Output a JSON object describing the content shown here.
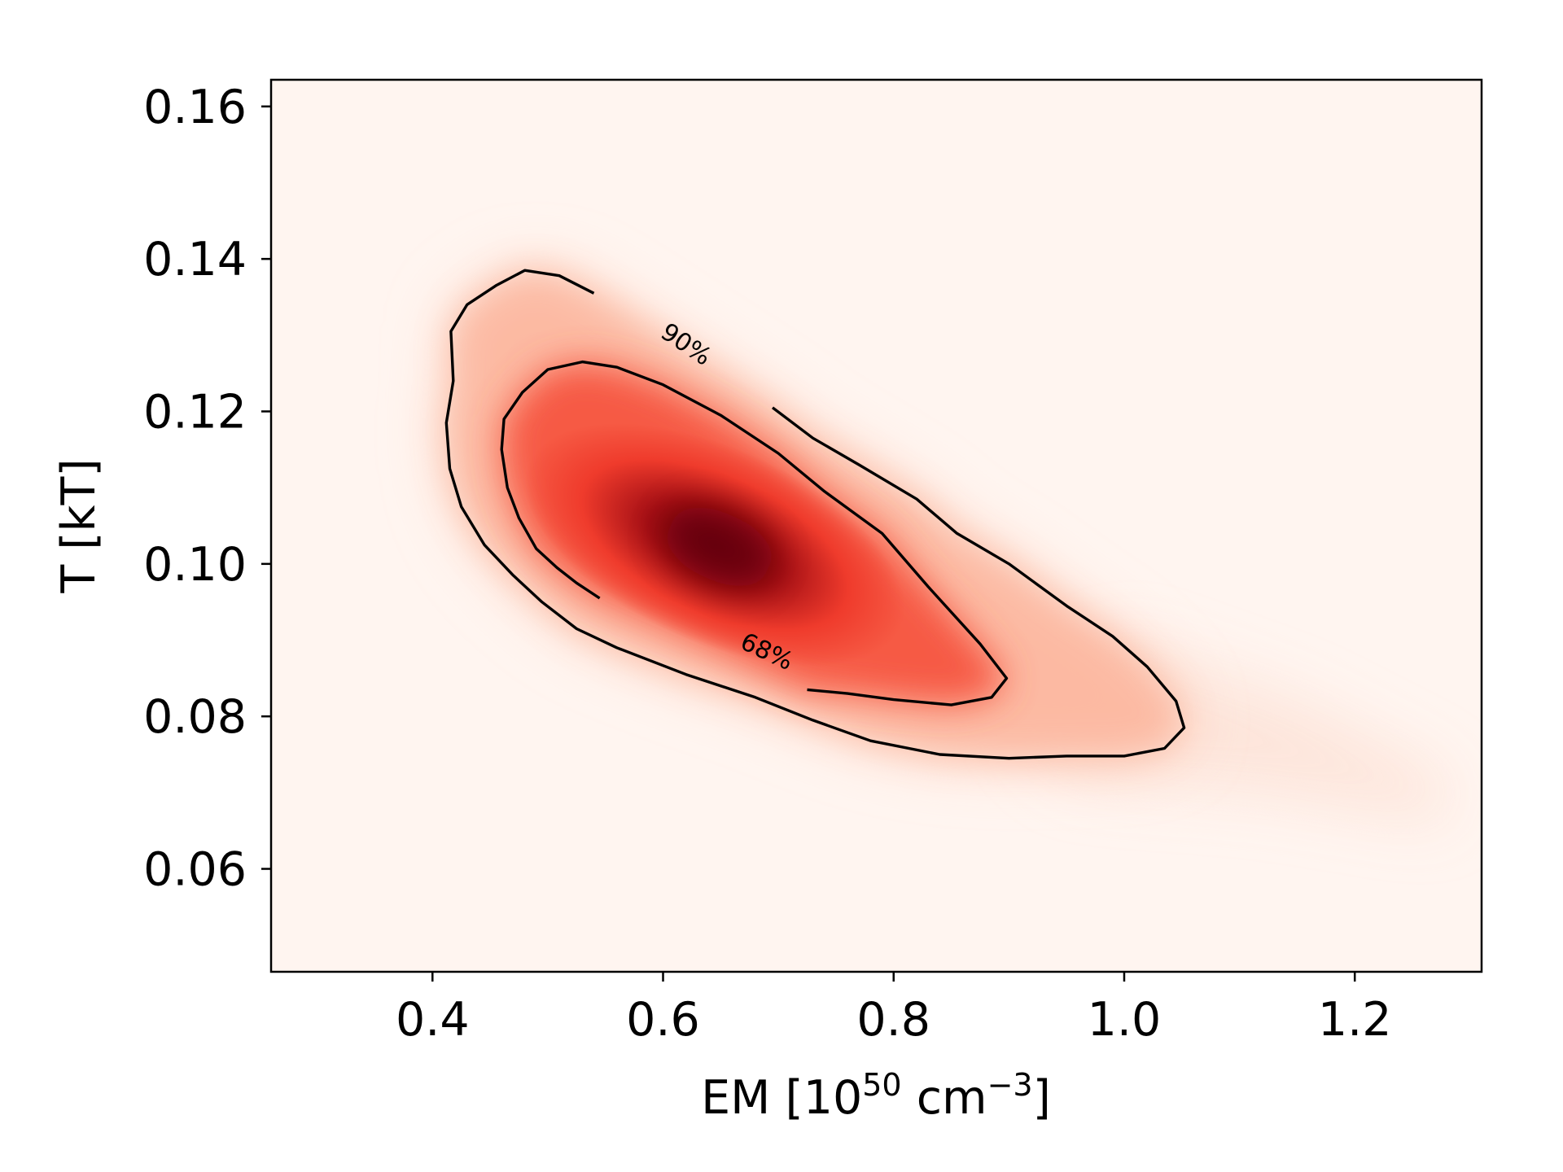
{
  "chart_data": {
    "type": "heatmap",
    "title": "",
    "xlabel": {
      "main": "EM [10",
      "sup1": "50",
      "mid": " cm",
      "sup2": "−3",
      "end": "]"
    },
    "ylabel": "T [kT]",
    "xlim": [
      0.26,
      1.31
    ],
    "ylim": [
      0.0465,
      0.1635
    ],
    "xticks": [
      0.4,
      0.6,
      0.8,
      1.0,
      1.2
    ],
    "xtick_labels": [
      "0.4",
      "0.6",
      "0.8",
      "1.0",
      "1.2"
    ],
    "yticks": [
      0.06,
      0.08,
      0.1,
      0.12,
      0.14,
      0.16
    ],
    "ytick_labels": [
      "0.06",
      "0.08",
      "0.10",
      "0.12",
      "0.14",
      "0.16"
    ],
    "colormap": "Reds",
    "colors": {
      "low": "#fff5f0",
      "mid": "#ef3b2c",
      "high": "#67000d",
      "contour": "#000000"
    },
    "grid": false,
    "peak": {
      "x": 0.645,
      "y": 0.1025
    },
    "contours": [
      {
        "label": "68%",
        "points": [
          [
            0.545,
            0.0955
          ],
          [
            0.525,
            0.0975
          ],
          [
            0.508,
            0.0995
          ],
          [
            0.49,
            0.102
          ],
          [
            0.475,
            0.106
          ],
          [
            0.465,
            0.11
          ],
          [
            0.46,
            0.115
          ],
          [
            0.462,
            0.119
          ],
          [
            0.478,
            0.1225
          ],
          [
            0.5,
            0.1255
          ],
          [
            0.53,
            0.1265
          ],
          [
            0.56,
            0.1258
          ],
          [
            0.6,
            0.1235
          ],
          [
            0.65,
            0.1195
          ],
          [
            0.7,
            0.1145
          ],
          [
            0.74,
            0.1095
          ],
          [
            0.79,
            0.104
          ],
          [
            0.83,
            0.097
          ],
          [
            0.875,
            0.0895
          ],
          [
            0.898,
            0.085
          ],
          [
            0.885,
            0.0825
          ],
          [
            0.85,
            0.0815
          ],
          [
            0.8,
            0.0822
          ],
          [
            0.76,
            0.083
          ],
          [
            0.725,
            0.0835
          ]
        ],
        "label_at": [
          0.69,
          0.0885
        ],
        "label_rotation": 25
      },
      {
        "label": "90%",
        "points": [
          [
            0.695,
            0.1205
          ],
          [
            0.73,
            0.1165
          ],
          [
            0.77,
            0.113
          ],
          [
            0.82,
            0.1085
          ],
          [
            0.855,
            0.104
          ],
          [
            0.9,
            0.1
          ],
          [
            0.95,
            0.0945
          ],
          [
            0.99,
            0.0905
          ],
          [
            1.02,
            0.0865
          ],
          [
            1.045,
            0.082
          ],
          [
            1.052,
            0.0785
          ],
          [
            1.035,
            0.0758
          ],
          [
            1.0,
            0.0748
          ],
          [
            0.95,
            0.0748
          ],
          [
            0.9,
            0.0745
          ],
          [
            0.84,
            0.075
          ],
          [
            0.78,
            0.0768
          ],
          [
            0.73,
            0.0795
          ],
          [
            0.68,
            0.0825
          ],
          [
            0.62,
            0.0855
          ],
          [
            0.56,
            0.089
          ],
          [
            0.525,
            0.0915
          ],
          [
            0.495,
            0.095
          ],
          [
            0.47,
            0.0985
          ],
          [
            0.445,
            0.1025
          ],
          [
            0.425,
            0.1075
          ],
          [
            0.415,
            0.1125
          ],
          [
            0.412,
            0.1185
          ],
          [
            0.418,
            0.124
          ],
          [
            0.416,
            0.1305
          ],
          [
            0.43,
            0.134
          ],
          [
            0.455,
            0.1365
          ],
          [
            0.48,
            0.1385
          ],
          [
            0.51,
            0.1378
          ],
          [
            0.54,
            0.1355
          ]
        ],
        "label_at": [
          0.62,
          0.1288
        ],
        "label_rotation": 34
      }
    ]
  }
}
